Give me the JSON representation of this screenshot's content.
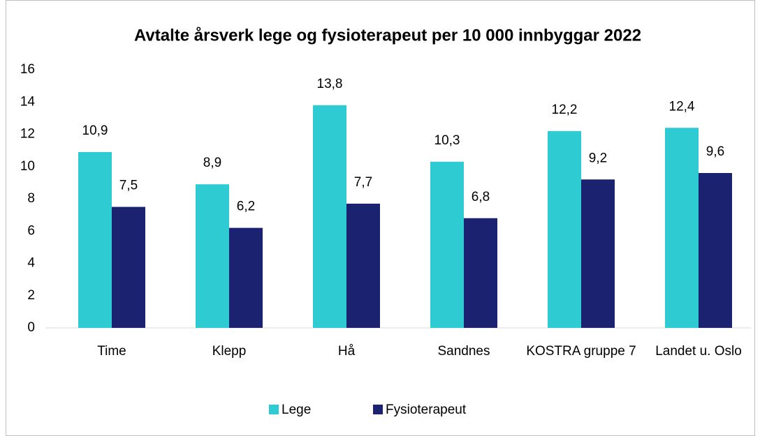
{
  "chart_data": {
    "type": "bar",
    "title": "Avtalte årsverk lege og fysioterapeut per 10 000 innbyggar 2022",
    "categories": [
      "Time",
      "Klepp",
      "Hå",
      "Sandnes",
      "KOSTRA gruppe 7",
      "Landet u. Oslo"
    ],
    "series": [
      {
        "name": "Lege",
        "color": "#2ecbd3",
        "values": [
          10.9,
          8.9,
          13.8,
          10.3,
          12.2,
          12.4
        ],
        "value_labels": [
          "10,9",
          "8,9",
          "13,8",
          "10,3",
          "12,2",
          "12,4"
        ]
      },
      {
        "name": "Fysioterapeut",
        "color": "#1b2270",
        "values": [
          7.5,
          6.2,
          7.7,
          6.8,
          9.2,
          9.6
        ],
        "value_labels": [
          "7,5",
          "6,2",
          "7,7",
          "6,8",
          "9,2",
          "9,6"
        ]
      }
    ],
    "ylim": [
      0,
      16
    ],
    "yticks": [
      0,
      2,
      4,
      6,
      8,
      10,
      12,
      14,
      16
    ],
    "grid": false,
    "legend": "bottom"
  }
}
